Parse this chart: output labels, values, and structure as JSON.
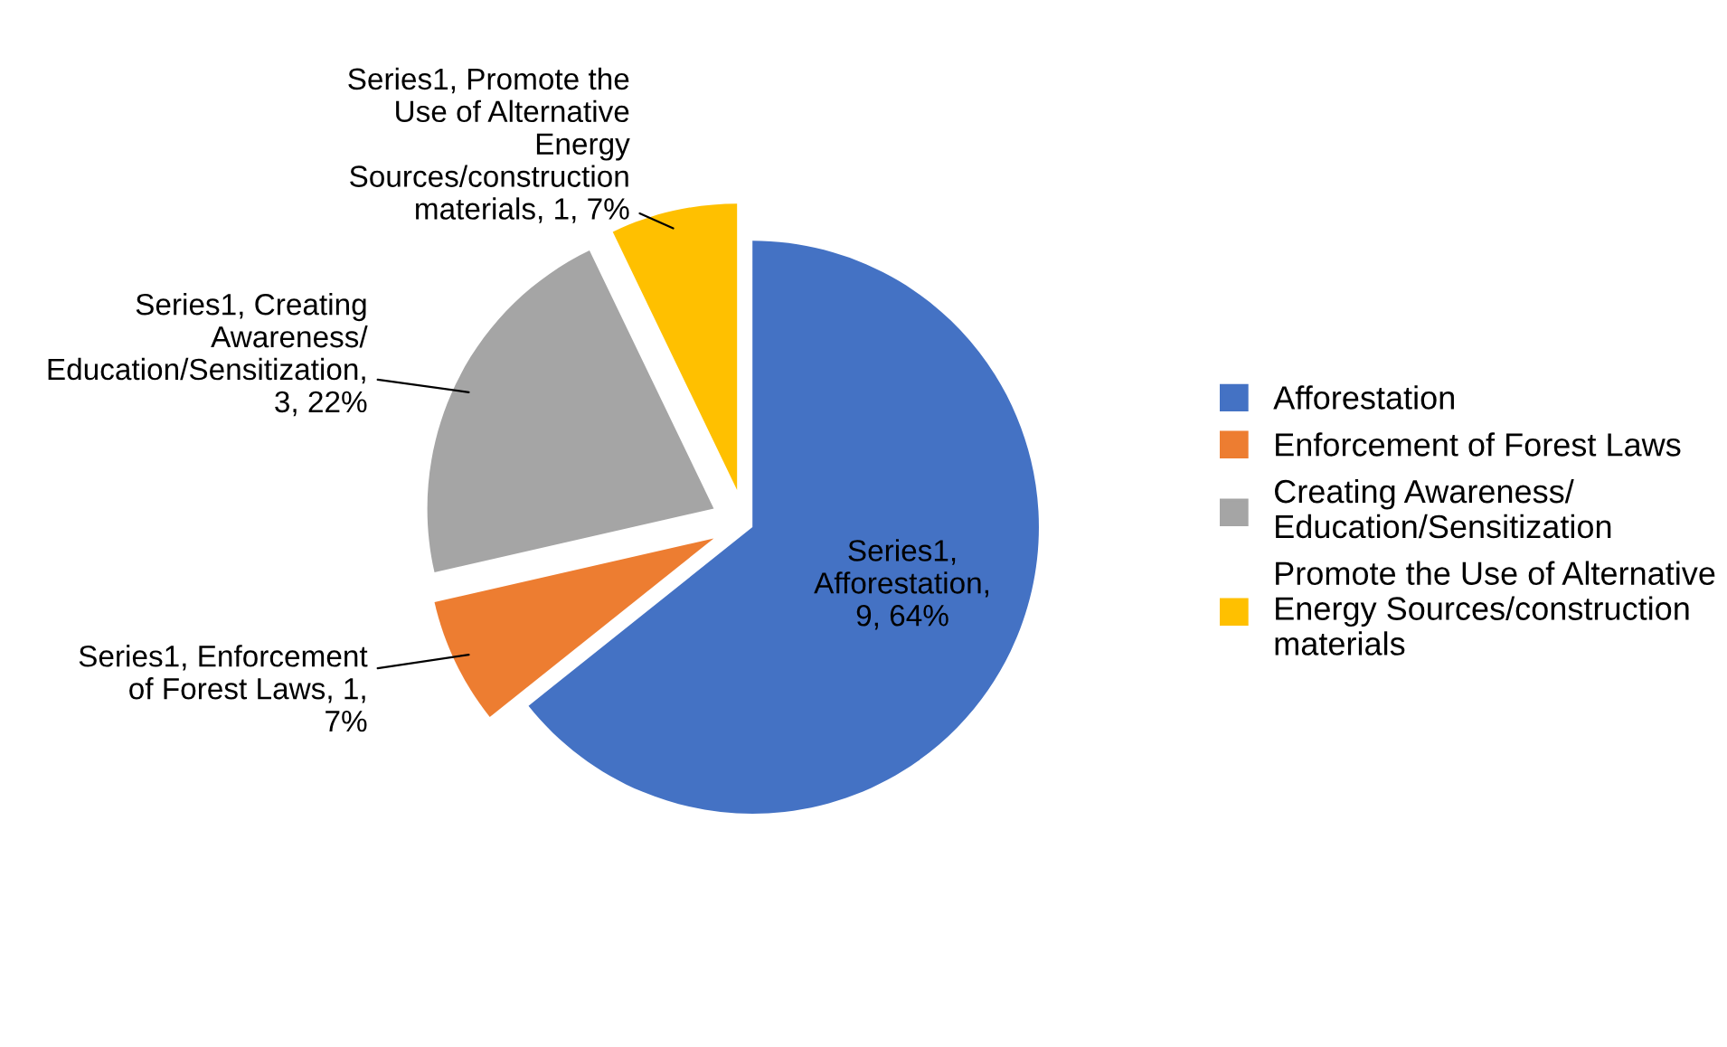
{
  "chart_data": {
    "type": "pie",
    "categories": [
      "Afforestation",
      "Enforcement of Forest Laws",
      "Creating Awareness/ Education/Sensitization",
      "Promote the Use of Alternative Energy Sources/construction materials"
    ],
    "values": [
      9,
      1,
      3,
      1
    ],
    "colors": [
      "#4472c4",
      "#ed7d31",
      "#a5a5a5",
      "#ffc000"
    ],
    "value_labels": [
      "Series1, Afforestation, 9, 64%",
      "Series1, Enforcement of Forest Laws, 1, 7%",
      "Series1, Creating Awareness/ Education/Sensitization, 3, 22%",
      "Series1, Promote the Use of Alternative Energy Sources/construction materials, 1, 7%"
    ],
    "legend": "right"
  }
}
